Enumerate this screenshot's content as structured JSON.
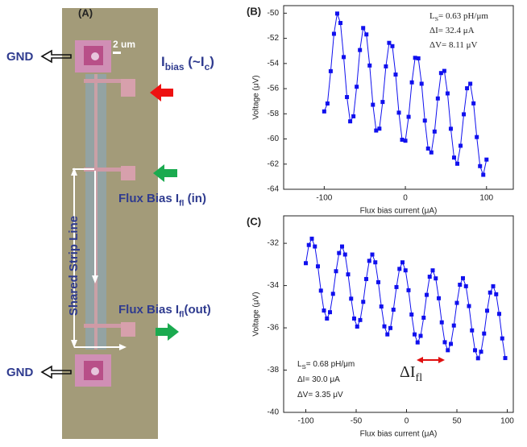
{
  "panel_a": {
    "label": "(A)",
    "scale": "2 um",
    "gnd_top": "GND",
    "gnd_bottom": "GND",
    "ibias": [
      "I",
      "bias",
      " (~I",
      "c",
      ")"
    ],
    "flux_in": [
      "Flux Bias I",
      "fl",
      " (in)"
    ],
    "flux_out": [
      "Flux Bias I",
      "fl",
      "(out)"
    ],
    "strip": "Shared Strip Line"
  },
  "chart_data": [
    {
      "type": "line",
      "panel": "(B)",
      "xlabel": "Flux bias current (μA)",
      "ylabel": "Voltage (μV)",
      "color": "#1010ee",
      "annotations": [
        [
          "L",
          "S",
          "= 0.63 pH/μm"
        ],
        [
          "ΔI= 32.4 μA"
        ],
        [
          "ΔV= 8.11 μV"
        ]
      ],
      "x": [
        -100,
        -96,
        -92,
        -88,
        -84,
        -80,
        -76,
        -72,
        -68,
        -64,
        -60,
        -56,
        -52,
        -48,
        -44,
        -40,
        -36,
        -32,
        -28,
        -24,
        -20,
        -16,
        -12,
        -8,
        -4,
        0,
        4,
        8,
        12,
        16,
        20,
        24,
        28,
        32,
        36,
        40,
        44,
        48,
        52,
        56,
        60,
        64,
        68,
        72,
        76,
        80,
        84,
        88,
        92,
        96,
        100
      ],
      "values": [
        -57.81,
        -57.18,
        -54.61,
        -51.64,
        -50.03,
        -50.78,
        -53.49,
        -56.67,
        -58.6,
        -58.2,
        -55.85,
        -52.93,
        -51.18,
        -51.69,
        -54.16,
        -57.28,
        -59.33,
        -59.18,
        -57.06,
        -54.23,
        -52.36,
        -52.62,
        -54.88,
        -57.91,
        -60.06,
        -60.14,
        -58.24,
        -55.5,
        -53.55,
        -53.59,
        -55.61,
        -58.54,
        -60.76,
        -61.07,
        -59.41,
        -56.78,
        -54.76,
        -54.59,
        -56.38,
        -59.19,
        -61.48,
        -61.97,
        -60.54,
        -58.04,
        -55.97,
        -55.61,
        -57.17,
        -59.85,
        -62.16,
        -62.85,
        -61.64
      ],
      "xlim": [
        -150,
        133
      ],
      "xticks": [
        -100,
        0,
        100
      ],
      "ylim": [
        -64,
        -49.4
      ],
      "yticks": [
        -64,
        -62,
        -60,
        -58,
        -56,
        -54,
        -52,
        -50
      ]
    },
    {
      "type": "line",
      "panel": "(C)",
      "xlabel": "Flux bias current (μA)",
      "ylabel": "Voltage (μV)",
      "color": "#1010ee",
      "annotations": [
        [
          "L",
          "S",
          "= 0.68 pH/μm"
        ],
        [
          "ΔI= 30.0 μA"
        ],
        [
          "ΔV= 3.35 μV"
        ]
      ],
      "marker_label": [
        "ΔI",
        "fl"
      ],
      "x": [
        -100,
        -97,
        -94,
        -91,
        -88,
        -85,
        -82,
        -79,
        -76,
        -73,
        -70,
        -67,
        -64,
        -61,
        -58,
        -55,
        -52,
        -49,
        -46,
        -43,
        -40,
        -37,
        -34,
        -31,
        -28,
        -25,
        -22,
        -19,
        -16,
        -13,
        -10,
        -7,
        -4,
        -1,
        2,
        5,
        8,
        11,
        14,
        17,
        20,
        23,
        26,
        29,
        32,
        35,
        38,
        41,
        44,
        47,
        50,
        53,
        56,
        59,
        62,
        65,
        68,
        71,
        74,
        77,
        80,
        83,
        86,
        89,
        92,
        95,
        98
      ],
      "values": [
        -32.94,
        -32.08,
        -31.78,
        -32.15,
        -33.09,
        -34.24,
        -35.18,
        -35.56,
        -35.26,
        -34.39,
        -33.32,
        -32.46,
        -32.15,
        -32.53,
        -33.47,
        -34.62,
        -35.56,
        -35.94,
        -35.63,
        -34.77,
        -33.69,
        -32.83,
        -32.53,
        -32.9,
        -33.84,
        -34.99,
        -35.93,
        -36.31,
        -36.01,
        -35.14,
        -34.07,
        -33.21,
        -32.9,
        -33.28,
        -34.22,
        -35.37,
        -36.31,
        -36.69,
        -36.38,
        -35.52,
        -34.44,
        -33.58,
        -33.28,
        -33.66,
        -34.6,
        -35.74,
        -36.68,
        -37.06,
        -36.76,
        -35.89,
        -34.82,
        -33.96,
        -33.65,
        -34.03,
        -34.97,
        -36.12,
        -37.06,
        -37.44,
        -37.13,
        -36.27,
        -35.19,
        -34.33,
        -34.03,
        -34.41,
        -35.34,
        -36.5,
        -37.43
      ],
      "xlim": [
        -122,
        106
      ],
      "xticks": [
        -100,
        -50,
        0,
        50,
        100
      ],
      "ylim": [
        -40,
        -30.7
      ],
      "yticks": [
        -40,
        -38,
        -36,
        -34,
        -32
      ]
    }
  ]
}
